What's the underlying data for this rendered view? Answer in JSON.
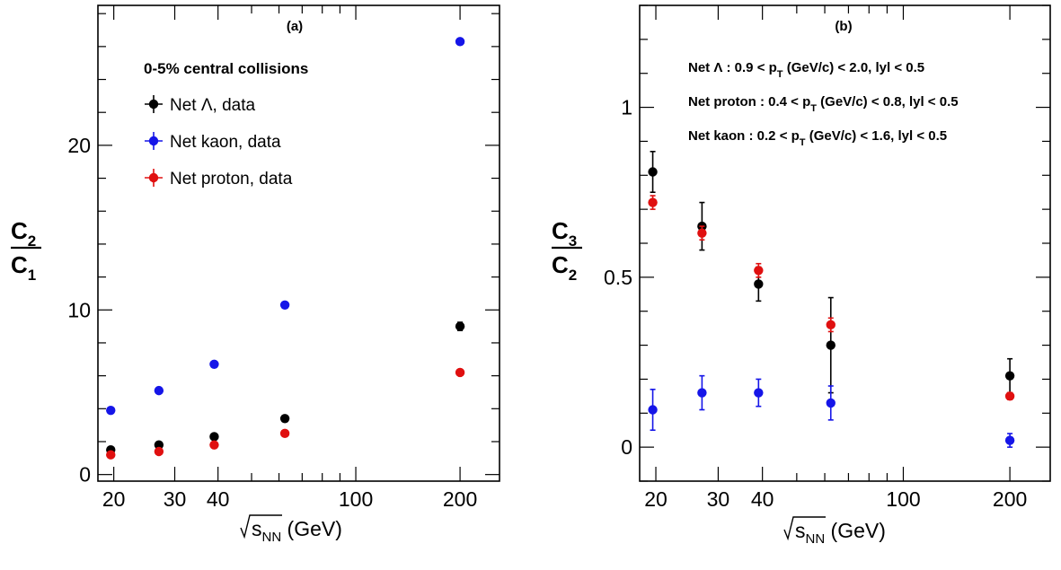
{
  "chart_data": [
    {
      "type": "scatter",
      "panel_label": "(a)",
      "x_scale": "log",
      "xlim": [
        18,
        260
      ],
      "ylim": [
        -0.4,
        28.5
      ],
      "x_ticks": [
        "20",
        "30",
        "40",
        "100",
        "200"
      ],
      "y_ticks": [
        "0",
        "10",
        "20"
      ],
      "x": [
        19.6,
        27,
        39,
        62.4,
        200
      ],
      "legend_header": "0-5% central collisions",
      "legend_position": "top-left",
      "series": [
        {
          "name": "Net Λ, data",
          "color": "#000000",
          "values": [
            1.5,
            1.8,
            2.3,
            3.4,
            9.0
          ],
          "errors": [
            0.1,
            0.1,
            0.1,
            0.1,
            0.25
          ]
        },
        {
          "name": "Net kaon, data",
          "color": "#1515e8",
          "values": [
            3.9,
            5.1,
            6.7,
            10.3,
            26.3
          ],
          "errors": [
            0.05,
            0.05,
            0.05,
            0.05,
            0.05
          ]
        },
        {
          "name": "Net proton, data",
          "color": "#e01010",
          "values": [
            1.2,
            1.4,
            1.8,
            2.5,
            6.2
          ],
          "errors": [
            0.05,
            0.05,
            0.05,
            0.05,
            0.05
          ]
        }
      ],
      "ylabel_num": "C",
      "ylabel_num_sub": "2",
      "ylabel_den": "C",
      "ylabel_den_sub": "1",
      "xlabel_main": "s",
      "xlabel_sub": "NN",
      "xlabel_unit": " (GeV)"
    },
    {
      "type": "scatter",
      "panel_label": "(b)",
      "x_scale": "log",
      "xlim": [
        18,
        260
      ],
      "ylim": [
        -0.1,
        1.3
      ],
      "x_ticks": [
        "20",
        "30",
        "40",
        "100",
        "200"
      ],
      "y_ticks": [
        "0",
        "0.5",
        "1"
      ],
      "x": [
        19.6,
        27,
        39,
        62.4,
        200
      ],
      "series": [
        {
          "name": "Net Λ",
          "color": "#000000",
          "values": [
            0.81,
            0.65,
            0.48,
            0.3,
            0.21
          ],
          "errors": [
            0.06,
            0.07,
            0.05,
            0.14,
            0.05
          ]
        },
        {
          "name": "Net proton",
          "color": "#e01010",
          "values": [
            0.72,
            0.63,
            0.52,
            0.36,
            0.15
          ],
          "errors": [
            0.02,
            0.02,
            0.02,
            0.02,
            0.01
          ]
        },
        {
          "name": "Net kaon",
          "color": "#1515e8",
          "values": [
            0.11,
            0.16,
            0.16,
            0.13,
            0.02
          ],
          "errors": [
            0.06,
            0.05,
            0.04,
            0.05,
            0.02
          ]
        }
      ],
      "annotations": [
        {
          "prefix": "Net Λ : 0.9 < p",
          "sub": "T",
          "suffix": " (GeV/c) < 2.0, lyl < 0.5"
        },
        {
          "prefix": "Net proton : 0.4 < p",
          "sub": "T",
          "suffix": " (GeV/c) < 0.8, lyl < 0.5"
        },
        {
          "prefix": "Net kaon : 0.2 < p",
          "sub": "T",
          "suffix": " (GeV/c) < 1.6, lyl < 0.5"
        }
      ],
      "ylabel_num": "C",
      "ylabel_num_sub": "3",
      "ylabel_den": "C",
      "ylabel_den_sub": "2",
      "xlabel_main": "s",
      "xlabel_sub": "NN",
      "xlabel_unit": " (GeV)"
    }
  ]
}
